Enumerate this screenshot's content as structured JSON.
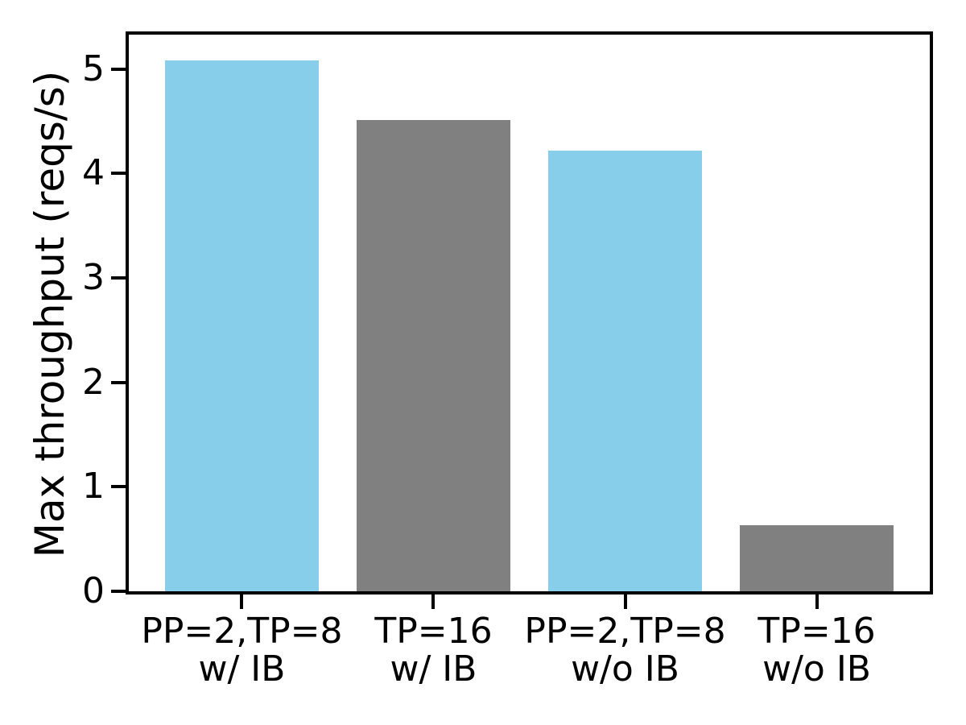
{
  "figure": {
    "background": "#ffffff",
    "text_color": "#000000",
    "axis_color": "#000000"
  },
  "chart_data": {
    "type": "bar",
    "title": "",
    "xlabel": "",
    "ylabel": "Max throughput (reqs/s)",
    "categories": [
      "PP=2,TP=8\nw/ IB",
      "TP=16\nw/ IB",
      "PP=2,TP=8\nw/o IB",
      "TP=16\nw/o IB"
    ],
    "values": [
      5.08,
      4.51,
      4.22,
      0.63
    ],
    "bar_colors": [
      "#87CEEB",
      "#808080",
      "#87CEEB",
      "#808080"
    ],
    "yticks": [
      0,
      1,
      2,
      3,
      4,
      5
    ],
    "ylim": [
      0,
      5.33
    ],
    "xlim": [
      -0.59,
      3.59
    ],
    "bar_width_fraction": 0.8,
    "grid": false,
    "legend_position": "none"
  }
}
